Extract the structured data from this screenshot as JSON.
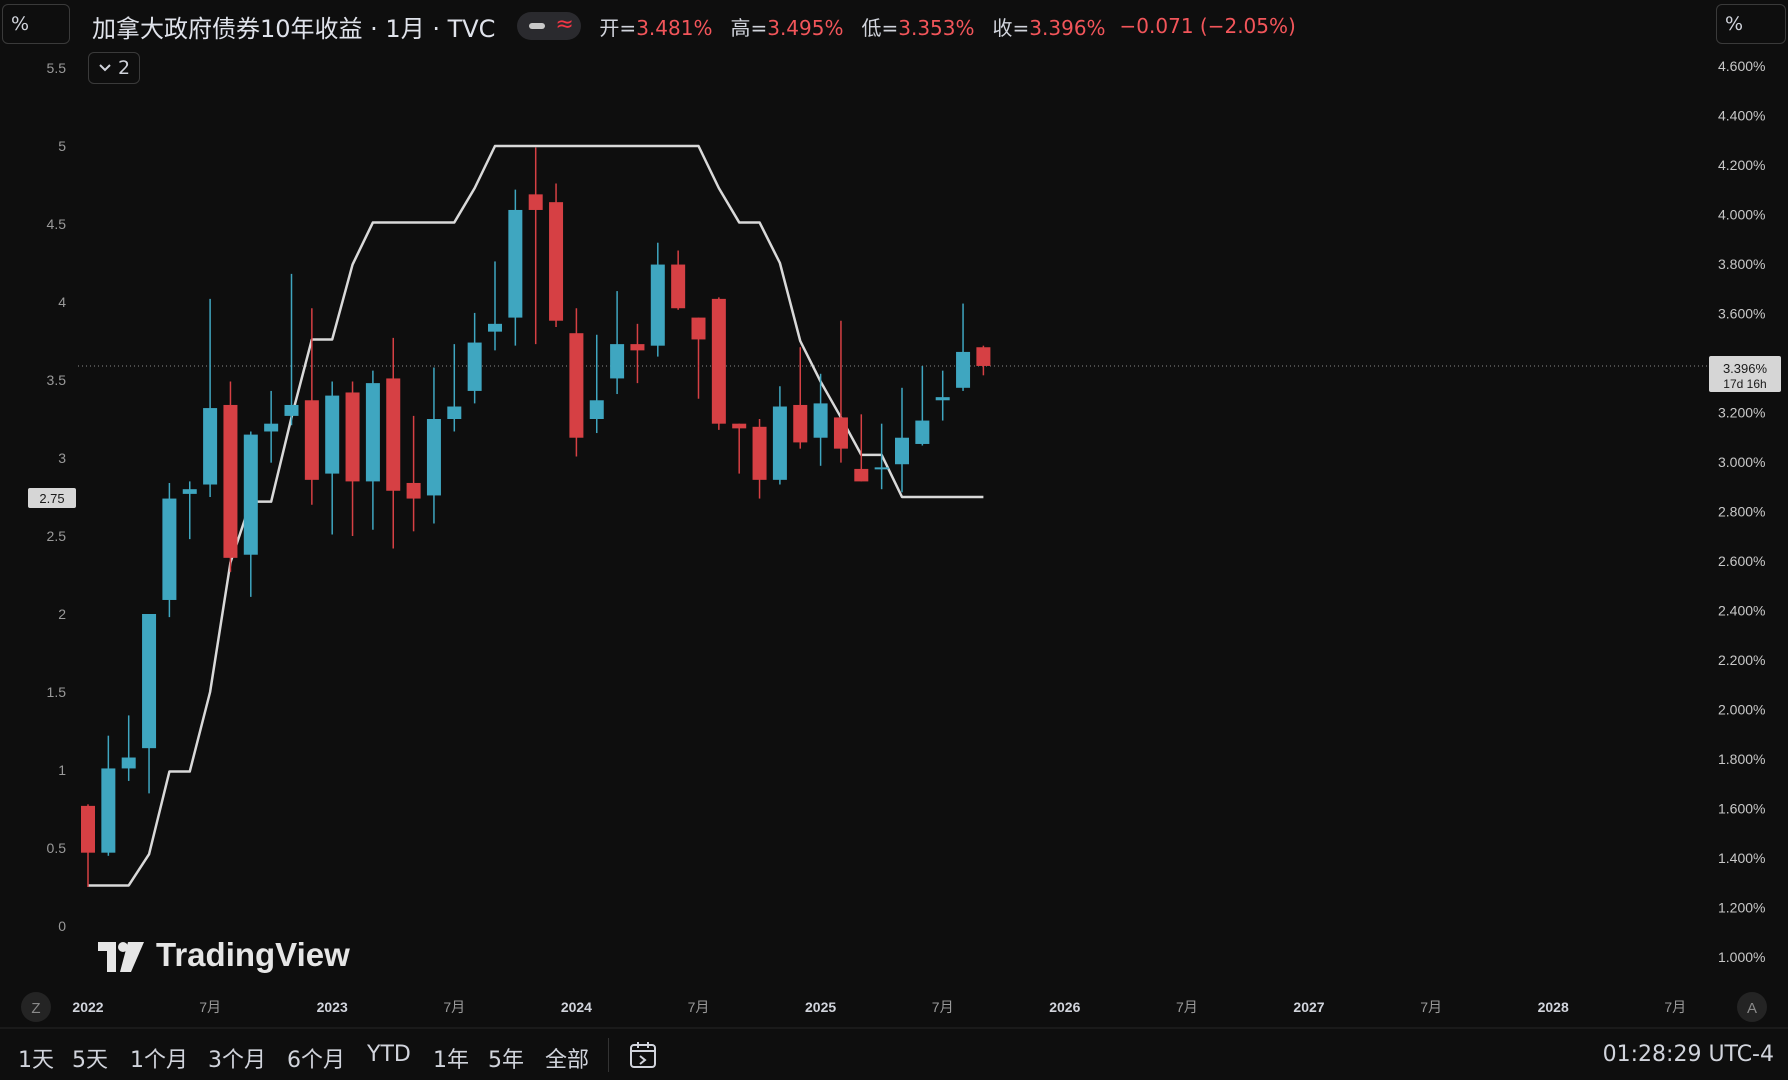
{
  "header": {
    "unit_left": "%",
    "unit_right": "%",
    "title": "加拿大政府债券10年收益 · 1月 · TVC",
    "wave_glyph": "≈",
    "ohlc": [
      {
        "key": "开=",
        "value": "3.481%"
      },
      {
        "key": "高=",
        "value": "3.495%"
      },
      {
        "key": "低=",
        "value": "3.353%"
      },
      {
        "key": "收=",
        "value": "3.396%"
      }
    ],
    "change": "−0.071 (−2.05%)",
    "collapse_label": "2"
  },
  "price_tag": {
    "value": "3.396%",
    "countdown": "17d 16h"
  },
  "left_tag": "2.75",
  "logo_text": "TradingView",
  "axis_buttons": {
    "left": "Z",
    "right": "A"
  },
  "bottom": {
    "timeframes": [
      "1天",
      "5天",
      "1个月",
      "3个月",
      "6个月",
      "YTD",
      "1年",
      "5年",
      "全部"
    ],
    "clock": "01:28:29 UTC-4"
  },
  "colors": {
    "up": "#3fa6c0",
    "down": "#d64044",
    "line": "#d9d9d9",
    "bg": "#0e0e0e"
  },
  "chart_data": {
    "type": "candlestick",
    "left_axis": {
      "ticks": [
        "0",
        "0.5",
        "1",
        "1.5",
        "2",
        "2.5",
        "3",
        "3.5",
        "4",
        "4.5",
        "5",
        "5.5"
      ],
      "range": [
        0,
        5.5
      ]
    },
    "right_axis": {
      "ticks": [
        "1.000%",
        "1.200%",
        "1.400%",
        "1.600%",
        "1.800%",
        "2.000%",
        "2.200%",
        "2.400%",
        "2.600%",
        "2.800%",
        "3.000%",
        "3.200%",
        "3.400%",
        "3.600%",
        "3.800%",
        "4.000%",
        "4.200%",
        "4.400%",
        "4.600%"
      ],
      "range": [
        1.0,
        4.6
      ],
      "unit": "%"
    },
    "x_ticks": [
      {
        "label": "2022",
        "bold": true,
        "t": 0
      },
      {
        "label": "7月",
        "t": 6
      },
      {
        "label": "2023",
        "bold": true,
        "t": 12
      },
      {
        "label": "7月",
        "t": 18
      },
      {
        "label": "2024",
        "bold": true,
        "t": 24
      },
      {
        "label": "7月",
        "t": 30
      },
      {
        "label": "2025",
        "bold": true,
        "t": 36
      },
      {
        "label": "7月",
        "t": 42
      },
      {
        "label": "2026",
        "bold": true,
        "t": 48
      },
      {
        "label": "7月",
        "t": 54
      },
      {
        "label": "2027",
        "bold": true,
        "t": 60
      },
      {
        "label": "7月",
        "t": 66
      },
      {
        "label": "2028",
        "bold": true,
        "t": 72
      },
      {
        "label": "7月",
        "t": 78
      }
    ],
    "candles_left_scale": [
      {
        "t": 0,
        "o": 0.77,
        "h": 0.78,
        "l": 0.25,
        "c": 0.47
      },
      {
        "t": 1,
        "o": 0.47,
        "h": 1.22,
        "l": 0.45,
        "c": 1.01
      },
      {
        "t": 2,
        "o": 1.01,
        "h": 1.35,
        "l": 0.93,
        "c": 1.08
      },
      {
        "t": 3,
        "o": 1.14,
        "h": 1.37,
        "l": 0.85,
        "c": 2.0
      },
      {
        "t": 4,
        "o": 2.09,
        "h": 2.84,
        "l": 1.98,
        "c": 2.74
      },
      {
        "t": 5,
        "o": 2.77,
        "h": 2.85,
        "l": 2.48,
        "c": 2.8
      },
      {
        "t": 6,
        "o": 2.83,
        "h": 4.02,
        "l": 2.75,
        "c": 3.32
      },
      {
        "t": 7,
        "o": 3.34,
        "h": 3.49,
        "l": 2.27,
        "c": 2.36
      },
      {
        "t": 8,
        "o": 2.38,
        "h": 3.17,
        "l": 2.11,
        "c": 3.15
      },
      {
        "t": 9,
        "o": 3.17,
        "h": 3.43,
        "l": 2.97,
        "c": 3.22
      },
      {
        "t": 10,
        "o": 3.27,
        "h": 4.18,
        "l": 3.21,
        "c": 3.34
      },
      {
        "t": 11,
        "o": 3.37,
        "h": 3.96,
        "l": 2.7,
        "c": 2.86
      },
      {
        "t": 12,
        "o": 2.9,
        "h": 3.49,
        "l": 2.51,
        "c": 3.4
      },
      {
        "t": 13,
        "o": 3.42,
        "h": 3.49,
        "l": 2.5,
        "c": 2.85
      },
      {
        "t": 14,
        "o": 2.85,
        "h": 3.56,
        "l": 2.54,
        "c": 3.48
      },
      {
        "t": 15,
        "o": 3.51,
        "h": 3.77,
        "l": 2.42,
        "c": 2.79
      },
      {
        "t": 16,
        "o": 2.84,
        "h": 3.27,
        "l": 2.53,
        "c": 2.74
      },
      {
        "t": 17,
        "o": 2.76,
        "h": 3.58,
        "l": 2.58,
        "c": 3.25
      },
      {
        "t": 18,
        "o": 3.25,
        "h": 3.73,
        "l": 3.17,
        "c": 3.33
      },
      {
        "t": 19,
        "o": 3.43,
        "h": 3.93,
        "l": 3.35,
        "c": 3.74
      },
      {
        "t": 20,
        "o": 3.81,
        "h": 4.26,
        "l": 3.69,
        "c": 3.86
      },
      {
        "t": 21,
        "o": 3.9,
        "h": 4.72,
        "l": 3.72,
        "c": 4.59
      },
      {
        "t": 22,
        "o": 4.69,
        "h": 4.99,
        "l": 3.73,
        "c": 4.59
      },
      {
        "t": 23,
        "o": 4.64,
        "h": 4.76,
        "l": 3.84,
        "c": 3.88
      },
      {
        "t": 24,
        "o": 3.8,
        "h": 3.96,
        "l": 3.01,
        "c": 3.13
      },
      {
        "t": 25,
        "o": 3.25,
        "h": 3.79,
        "l": 3.16,
        "c": 3.37
      },
      {
        "t": 26,
        "o": 3.51,
        "h": 4.07,
        "l": 3.41,
        "c": 3.73
      },
      {
        "t": 27,
        "o": 3.73,
        "h": 3.86,
        "l": 3.48,
        "c": 3.69
      },
      {
        "t": 28,
        "o": 3.72,
        "h": 4.38,
        "l": 3.65,
        "c": 4.24
      },
      {
        "t": 29,
        "o": 4.24,
        "h": 4.33,
        "l": 3.95,
        "c": 3.96
      },
      {
        "t": 30,
        "o": 3.9,
        "h": 3.87,
        "l": 3.38,
        "c": 3.76
      },
      {
        "t": 31,
        "o": 4.02,
        "h": 4.03,
        "l": 3.18,
        "c": 3.22
      },
      {
        "t": 32,
        "o": 3.22,
        "h": 3.18,
        "l": 2.9,
        "c": 3.19
      },
      {
        "t": 33,
        "o": 3.2,
        "h": 3.25,
        "l": 2.74,
        "c": 2.86
      },
      {
        "t": 34,
        "o": 2.86,
        "h": 3.46,
        "l": 2.83,
        "c": 3.33
      },
      {
        "t": 35,
        "o": 3.34,
        "h": 3.71,
        "l": 3.06,
        "c": 3.1
      },
      {
        "t": 36,
        "o": 3.13,
        "h": 3.54,
        "l": 2.95,
        "c": 3.35
      },
      {
        "t": 37,
        "o": 3.26,
        "h": 3.88,
        "l": 2.97,
        "c": 3.06
      },
      {
        "t": 38,
        "o": 2.93,
        "h": 3.28,
        "l": 2.87,
        "c": 2.85
      },
      {
        "t": 39,
        "o": 2.94,
        "h": 3.22,
        "l": 2.8,
        "c": 2.94
      },
      {
        "t": 40,
        "o": 2.96,
        "h": 3.45,
        "l": 2.78,
        "c": 3.13
      },
      {
        "t": 41,
        "o": 3.09,
        "h": 3.59,
        "l": 3.08,
        "c": 3.24
      },
      {
        "t": 42,
        "o": 3.37,
        "h": 3.56,
        "l": 3.24,
        "c": 3.39
      },
      {
        "t": 43,
        "o": 3.45,
        "h": 3.99,
        "l": 3.43,
        "c": 3.68
      },
      {
        "t": 44,
        "o": 3.71,
        "h": 3.72,
        "l": 3.53,
        "c": 3.59
      }
    ],
    "line_series_left_scale": [
      {
        "t": 0,
        "v": 0.26
      },
      {
        "t": 2,
        "v": 0.26
      },
      {
        "t": 3,
        "v": 0.46
      },
      {
        "t": 4,
        "v": 0.99
      },
      {
        "t": 5,
        "v": 0.99
      },
      {
        "t": 6,
        "v": 1.5
      },
      {
        "t": 7,
        "v": 2.33
      },
      {
        "t": 8,
        "v": 2.72
      },
      {
        "t": 9,
        "v": 2.72
      },
      {
        "t": 10,
        "v": 3.26
      },
      {
        "t": 11,
        "v": 3.76
      },
      {
        "t": 12,
        "v": 3.76
      },
      {
        "t": 13,
        "v": 4.24
      },
      {
        "t": 14,
        "v": 4.51
      },
      {
        "t": 17,
        "v": 4.51
      },
      {
        "t": 18,
        "v": 4.51
      },
      {
        "t": 19,
        "v": 4.73
      },
      {
        "t": 20,
        "v": 5.0
      },
      {
        "t": 26,
        "v": 5.0
      },
      {
        "t": 30,
        "v": 5.0
      },
      {
        "t": 31,
        "v": 4.73
      },
      {
        "t": 32,
        "v": 4.51
      },
      {
        "t": 33,
        "v": 4.51
      },
      {
        "t": 34,
        "v": 4.25
      },
      {
        "t": 35,
        "v": 3.75
      },
      {
        "t": 36,
        "v": 3.49
      },
      {
        "t": 37,
        "v": 3.26
      },
      {
        "t": 38,
        "v": 3.02
      },
      {
        "t": 39,
        "v": 3.02
      },
      {
        "t": 40,
        "v": 2.75
      },
      {
        "t": 44,
        "v": 2.75
      }
    ]
  }
}
